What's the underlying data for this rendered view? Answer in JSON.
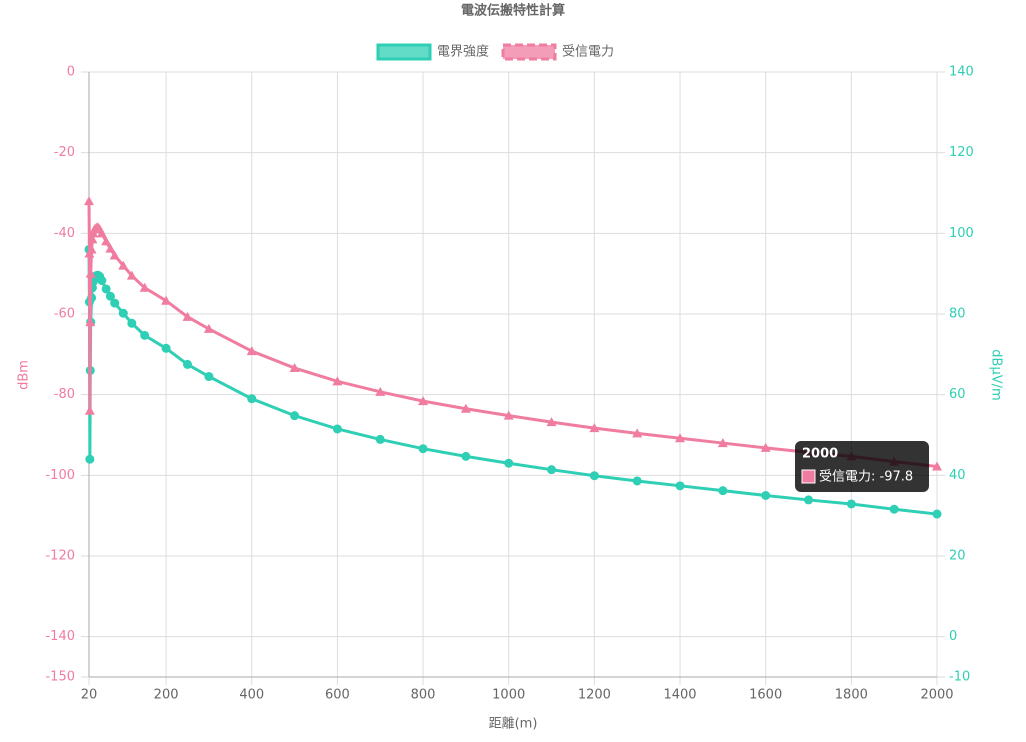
{
  "chart_data": {
    "type": "line",
    "title": "電波伝搬特性計算",
    "xlabel": "距離(m)",
    "ylabel": "dBm",
    "y2label": "dBμV/m",
    "x": [
      20,
      21,
      22,
      23,
      24,
      26,
      28,
      30,
      33,
      37,
      41,
      45,
      50,
      60,
      70,
      80,
      100,
      120,
      150,
      200,
      250,
      300,
      400,
      500,
      600,
      700,
      800,
      900,
      1000,
      1100,
      1200,
      1300,
      1400,
      1500,
      1600,
      1700,
      1800,
      1900,
      2000
    ],
    "series": [
      {
        "name": "電界強度",
        "color": "#2ecfb4",
        "axis": "y2",
        "marker": "circle",
        "values": [
          96,
          83,
          44,
          66,
          78,
          84,
          86.5,
          88,
          89,
          89.5,
          89.6,
          89.3,
          88.3,
          86.2,
          84.4,
          82.7,
          80.2,
          77.7,
          74.7,
          71.5,
          67.5,
          64.5,
          59,
          54.8,
          51.5,
          48.9,
          46.6,
          44.7,
          43,
          41.4,
          39.9,
          38.6,
          37.4,
          36.2,
          35,
          33.9,
          32.9,
          31.6,
          30.4
        ]
      },
      {
        "name": "受信電力",
        "color": "#f07ca0",
        "axis": "y",
        "marker": "triangle",
        "values": [
          -32,
          -45,
          -84,
          -62,
          -50,
          -44,
          -41.5,
          -40,
          -39,
          -38.6,
          -38.5,
          -39,
          -40,
          -42,
          -43.8,
          -45.5,
          -48,
          -50.5,
          -53.5,
          -56.7,
          -60.7,
          -63.7,
          -69.2,
          -73.4,
          -76.7,
          -79.3,
          -81.6,
          -83.5,
          -85.2,
          -86.8,
          -88.3,
          -89.6,
          -90.8,
          -92,
          -93.2,
          -94.3,
          -95.3,
          -96.6,
          -97.8
        ]
      }
    ],
    "xlim": [
      20,
      2000
    ],
    "xticks": [
      20,
      200,
      400,
      600,
      800,
      1000,
      1200,
      1400,
      1600,
      1800,
      2000
    ],
    "ylim": [
      -150,
      0
    ],
    "yticks": [
      0,
      -20,
      -40,
      -60,
      -80,
      -100,
      -120,
      -140,
      -150
    ],
    "y2lim": [
      -10,
      140
    ],
    "y2ticks": [
      140,
      120,
      100,
      80,
      60,
      40,
      20,
      0,
      -10
    ],
    "grid": true,
    "legend": "top",
    "tooltip": {
      "title": "2000",
      "label": "受信電力: -97.8"
    }
  }
}
